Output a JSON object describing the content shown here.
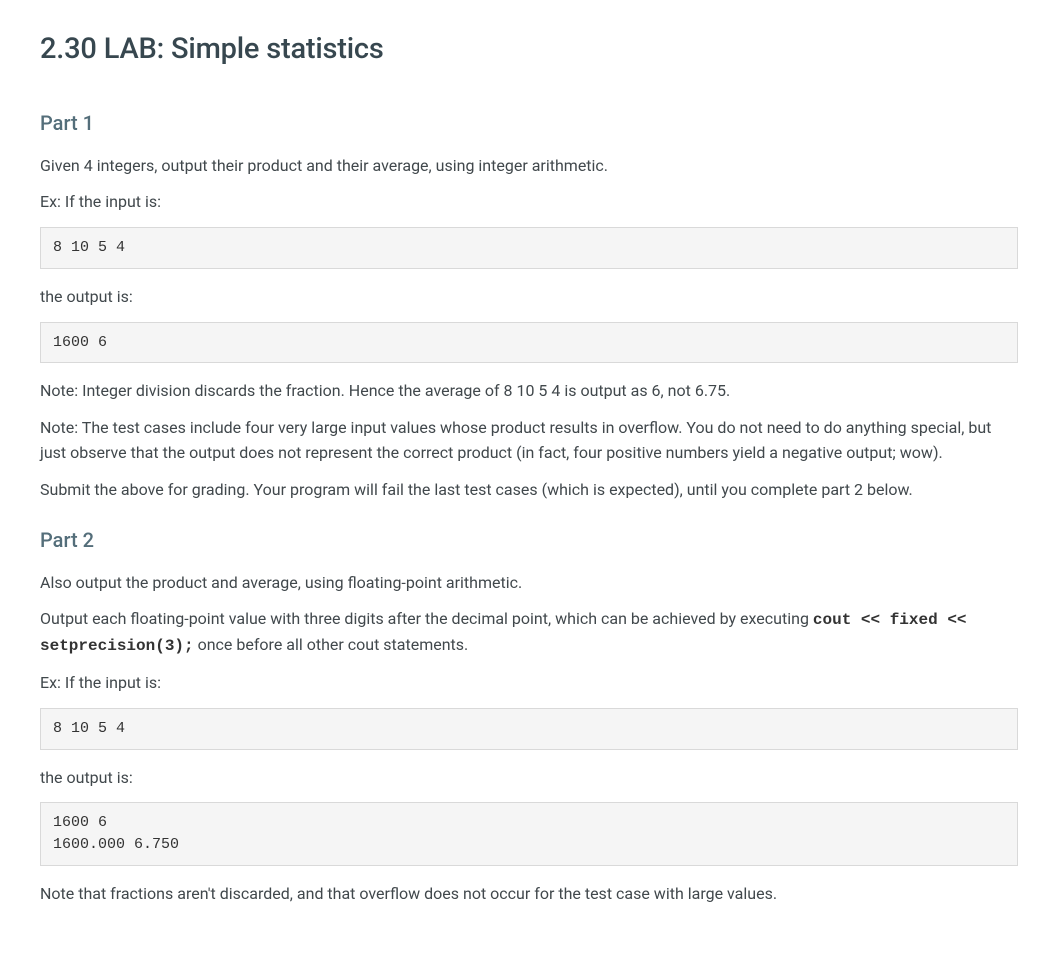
{
  "title": "2.30 LAB: Simple statistics",
  "part1": {
    "heading": "Part 1",
    "intro": "Given 4 integers, output their product and their average, using integer arithmetic.",
    "ex_label": "Ex: If the input is:",
    "input_code": "8 10 5 4",
    "output_label": "the output is:",
    "output_code": "1600 6",
    "note1": "Note: Integer division discards the fraction. Hence the average of 8 10 5 4 is output as 6, not 6.75.",
    "note2": "Note: The test cases include four very large input values whose product results in overflow. You do not need to do anything special, but just observe that the output does not represent the correct product (in fact, four positive numbers yield a negative output; wow).",
    "submit": "Submit the above for grading. Your program will fail the last test cases (which is expected), until you complete part 2 below."
  },
  "part2": {
    "heading": "Part 2",
    "intro": "Also output the product and average, using floating-point arithmetic.",
    "precision_pre": "Output each floating-point value with three digits after the decimal point, which can be achieved by executing ",
    "precision_code": "cout << fixed << setprecision(3);",
    "precision_post": " once before all other cout statements.",
    "ex_label": "Ex: If the input is:",
    "input_code": "8 10 5 4",
    "output_label": "the output is:",
    "output_code": "1600 6\n1600.000 6.750",
    "note": "Note that fractions aren't discarded, and that overflow does not occur for the test case with large values."
  },
  "styling": {
    "background_color": "#ffffff",
    "text_color": "#41484c",
    "heading_color": "#37474f",
    "subheading_color": "#546e7a",
    "code_bg": "#f5f5f5",
    "code_border": "#d9d9d9",
    "body_fontsize": 16,
    "h1_fontsize": 29,
    "h2_fontsize": 20,
    "code_fontfamily": "Courier New, monospace"
  }
}
